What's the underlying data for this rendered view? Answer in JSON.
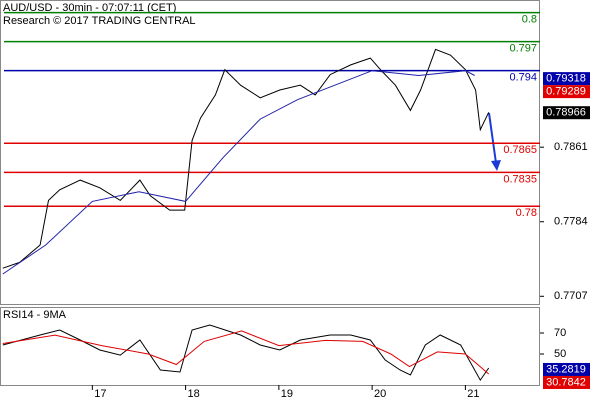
{
  "chart_data": [
    {
      "type": "line",
      "title": "AUD/USD - 30min - 07:07:11 (CET)",
      "subtitle": "Research © 2017 TRADING CENTRAL",
      "xlim": [
        16.01,
        21.8
      ],
      "ylim": [
        0.7698,
        0.8013
      ],
      "yticks": [
        0.7707,
        0.7784,
        0.7861
      ],
      "series": [
        {
          "name": "AUD/USD",
          "color": "#000000",
          "x": [
            16.04,
            16.22,
            16.44,
            16.53,
            16.65,
            16.87,
            17.08,
            17.3,
            17.51,
            17.62,
            17.83,
            17.99,
            18.07,
            18.16,
            18.32,
            18.42,
            18.59,
            18.8,
            19.01,
            19.23,
            19.39,
            19.55,
            19.77,
            19.98,
            20.09,
            20.25,
            20.41,
            20.52,
            20.68,
            20.84,
            21.0,
            21.11,
            21.16,
            21.25
          ],
          "values": [
            0.7736,
            0.7742,
            0.776,
            0.7806,
            0.7817,
            0.7827,
            0.7819,
            0.7806,
            0.7827,
            0.7811,
            0.7796,
            0.7796,
            0.7868,
            0.7891,
            0.7915,
            0.7941,
            0.7925,
            0.7912,
            0.792,
            0.7925,
            0.7915,
            0.7936,
            0.7946,
            0.7953,
            0.7941,
            0.7925,
            0.7899,
            0.792,
            0.7962,
            0.7956,
            0.7941,
            0.792,
            0.7879,
            0.7897
          ]
        },
        {
          "name": "MA",
          "color": "#2222aa",
          "x": [
            16.04,
            16.5,
            17.0,
            17.5,
            18.0,
            18.4,
            18.8,
            19.2,
            19.6,
            20.0,
            20.5,
            21.0,
            21.1
          ],
          "values": [
            0.773,
            0.776,
            0.7805,
            0.7815,
            0.7805,
            0.785,
            0.789,
            0.791,
            0.7925,
            0.794,
            0.7935,
            0.794,
            0.7935
          ]
        }
      ],
      "levels": [
        {
          "value": 0.8,
          "color": "#008000"
        },
        {
          "value": 0.797,
          "color": "#008000"
        },
        {
          "value": 0.794,
          "color": "#0000aa"
        },
        {
          "value": 0.7865,
          "color": "#e00000"
        },
        {
          "value": 0.7835,
          "color": "#e00000"
        },
        {
          "value": 0.78,
          "color": "#e00000"
        }
      ],
      "price_tags": [
        {
          "value": 0.79318,
          "color": "#0000aa"
        },
        {
          "value": 0.79289,
          "color": "#e00000"
        },
        {
          "value": 0.78966,
          "color": "#000000"
        }
      ]
    },
    {
      "type": "line",
      "title": "RSI14 - 9MA",
      "xlim": [
        16.01,
        21.8
      ],
      "xticks": [
        17,
        18,
        19,
        20,
        21
      ],
      "ylim": [
        20.5,
        93.8
      ],
      "yticks": [
        50,
        70
      ],
      "series": [
        {
          "name": "RSI14",
          "color": "#000000",
          "x": [
            16.04,
            16.44,
            16.65,
            16.87,
            17.08,
            17.3,
            17.51,
            17.73,
            17.94,
            18.07,
            18.26,
            18.59,
            18.8,
            19.01,
            19.23,
            19.55,
            19.77,
            19.98,
            20.14,
            20.3,
            20.41,
            20.57,
            20.73,
            20.95,
            21.16,
            21.25
          ],
          "values": [
            58.6,
            68.1,
            72.9,
            63.3,
            53.8,
            49.0,
            63.3,
            34.8,
            32.9,
            72.9,
            77.6,
            68.1,
            58.6,
            53.8,
            63.3,
            68.1,
            68.1,
            63.3,
            44.3,
            34.8,
            30.0,
            58.6,
            68.1,
            58.6,
            25.2,
            36.7
          ]
        },
        {
          "name": "9MA",
          "color": "#e00000",
          "x": [
            16.04,
            16.6,
            17.1,
            17.6,
            17.9,
            18.2,
            18.6,
            19.0,
            19.5,
            19.9,
            20.2,
            20.4,
            20.7,
            21.0,
            21.25
          ],
          "values": [
            60,
            68,
            58,
            50,
            40,
            62,
            72,
            58,
            63,
            62,
            50,
            38,
            52,
            50,
            31
          ]
        }
      ],
      "price_tags": [
        {
          "value": 35.2819,
          "color": "#0000aa"
        },
        {
          "value": 30.7842,
          "color": "#e00000"
        }
      ]
    }
  ]
}
